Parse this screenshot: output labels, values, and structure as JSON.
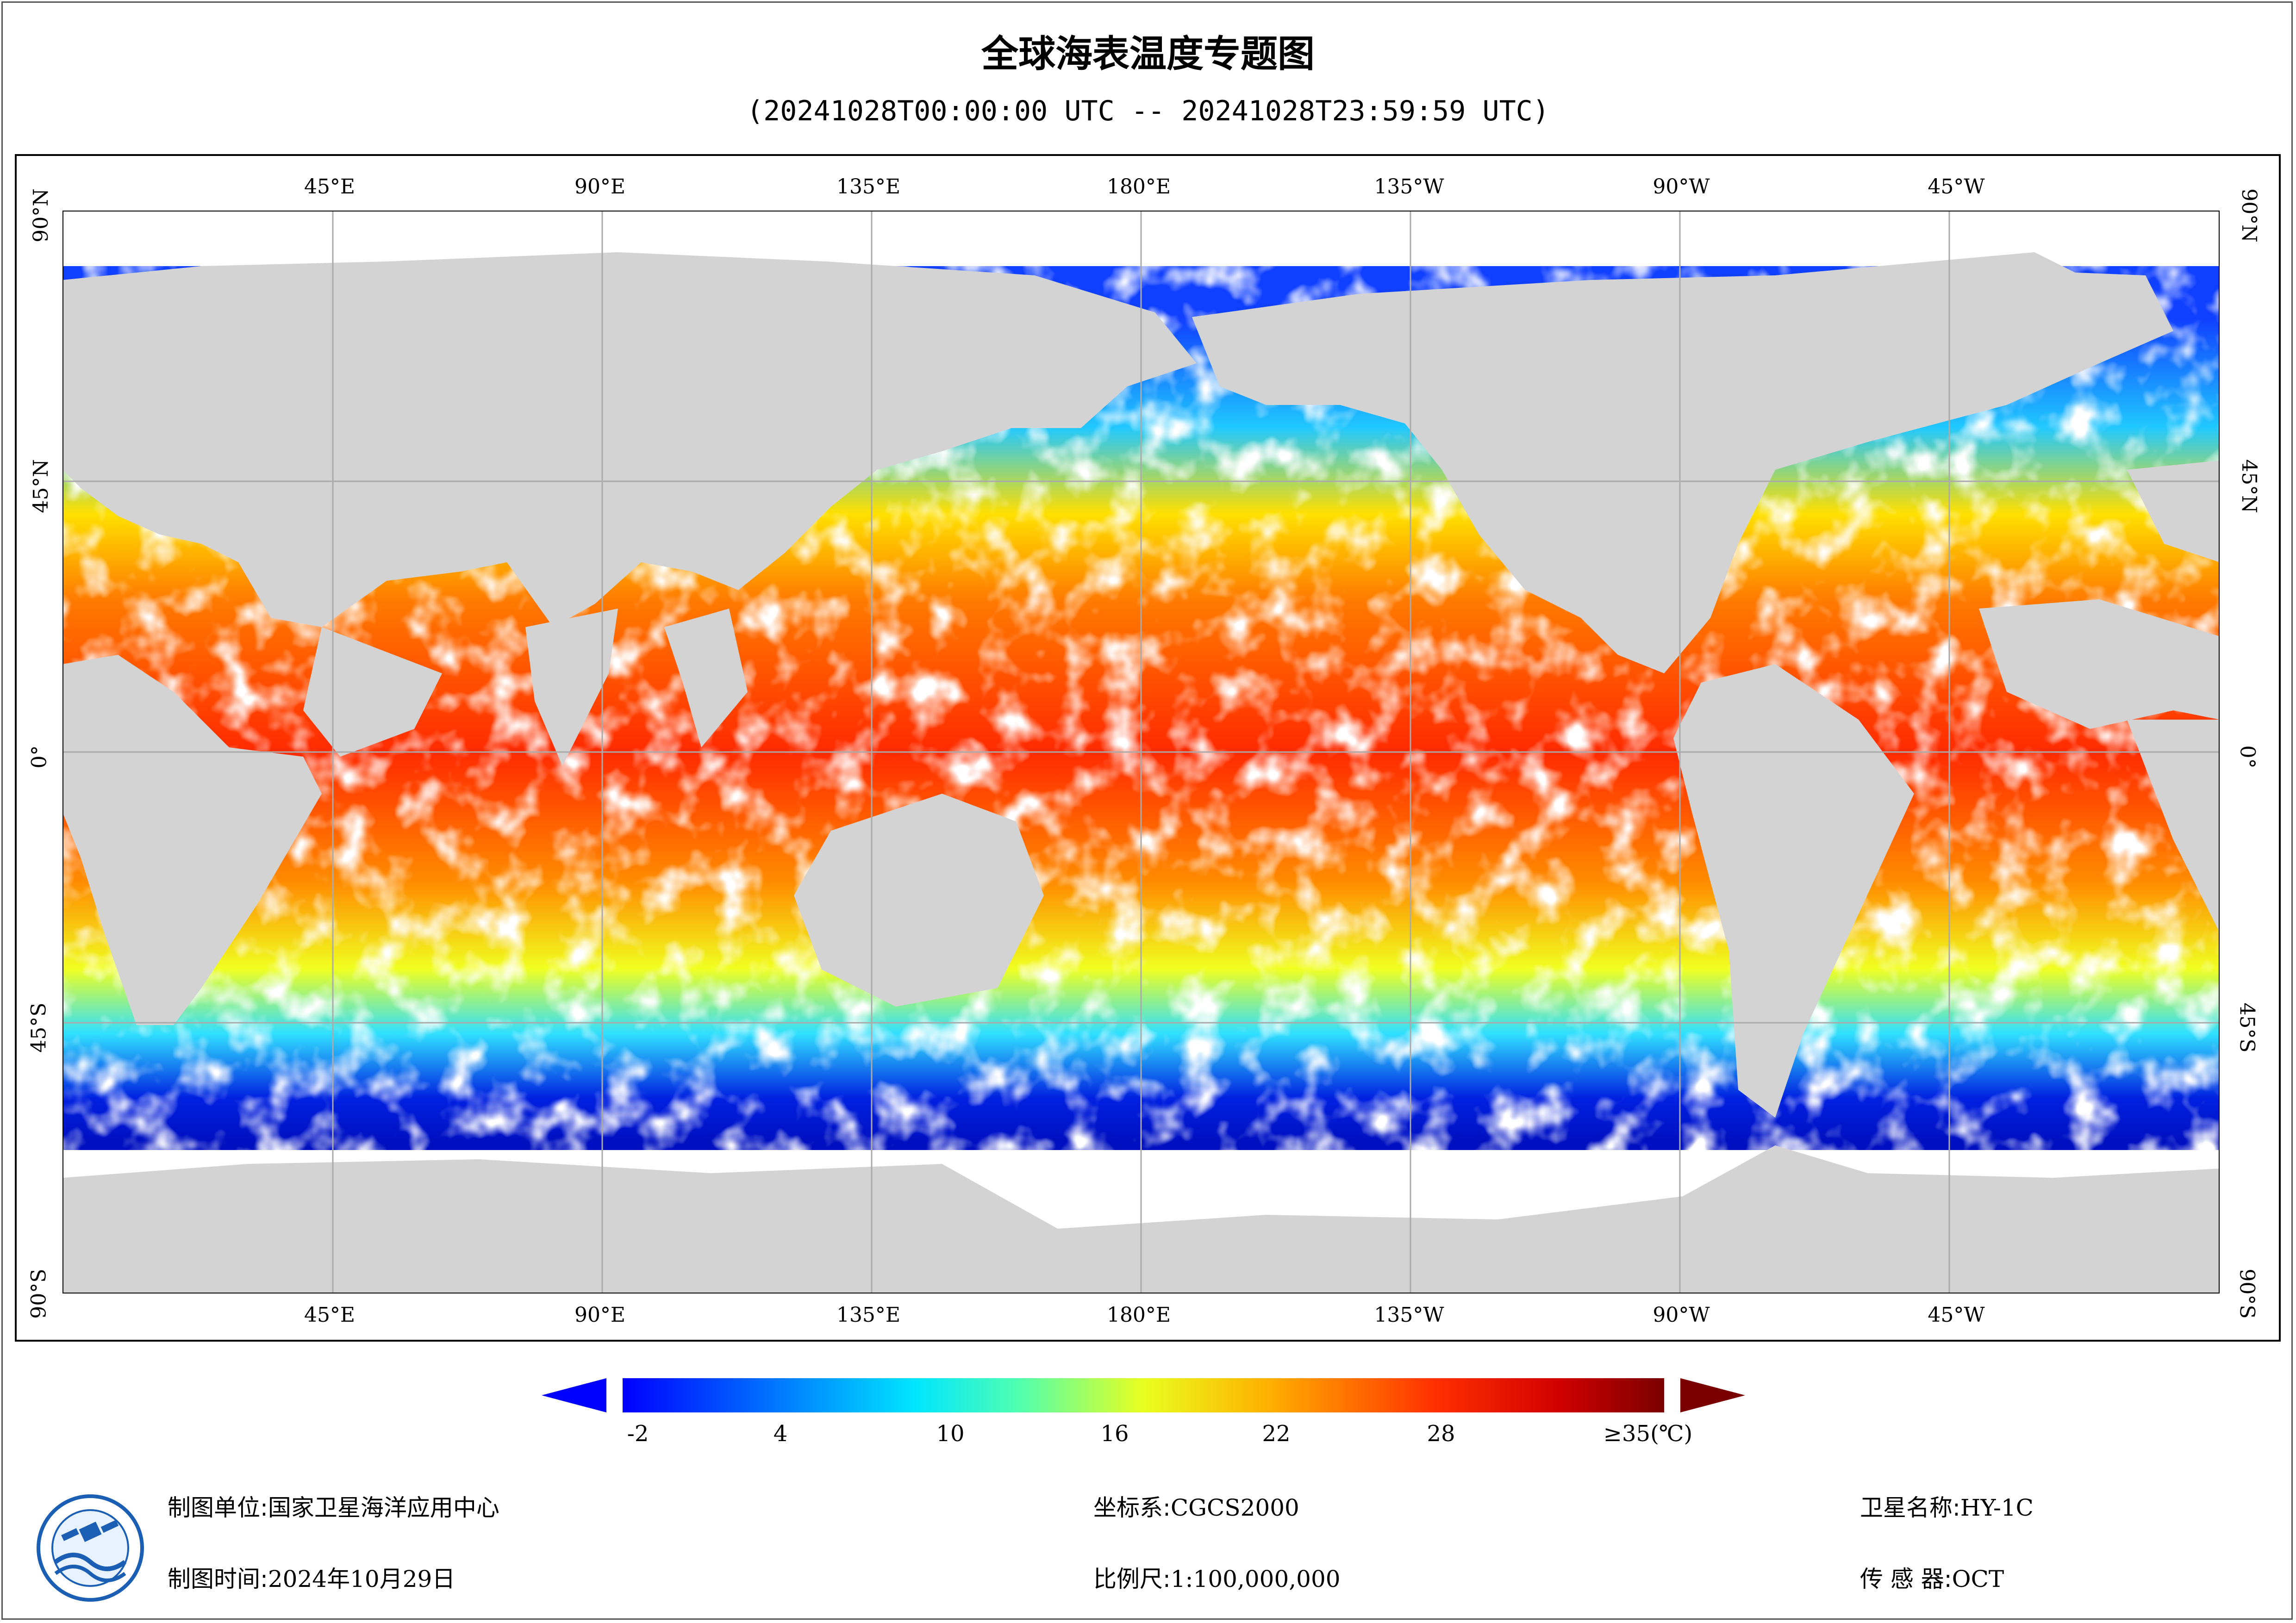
{
  "title": "全球海表温度专题图",
  "subtitle": "(20241028T00:00:00 UTC -- 20241028T23:59:59 UTC)",
  "longitude_labels": [
    "45°E",
    "90°E",
    "135°E",
    "180°E",
    "135°W",
    "90°W",
    "45°W"
  ],
  "latitude_labels": [
    "90°N",
    "45°N",
    "0°",
    "45°S",
    "90°S"
  ],
  "colorbar": {
    "ticks": [
      "-2",
      "4",
      "10",
      "16",
      "22",
      "28",
      "≥35(℃)"
    ],
    "range": [
      -2,
      35
    ],
    "unit": "℃"
  },
  "info": {
    "org_label": "制图单位:",
    "org_value": "国家卫星海洋应用中心",
    "time_label": "制图时间:",
    "time_value": "2024年10月29日",
    "crs_label": "坐标系:",
    "crs_value": "CGCS2000",
    "scale_label": "比例尺:",
    "scale_value": "1:100,000,000",
    "sat_label": "卫星名称:",
    "sat_value": "HY-1C",
    "sensor_label": "传 感 器:",
    "sensor_value": "OCT"
  },
  "colors": {
    "land": "#d3d3d3",
    "cloud_nodata": "#ffffff",
    "grid": "#aaaaaa"
  }
}
